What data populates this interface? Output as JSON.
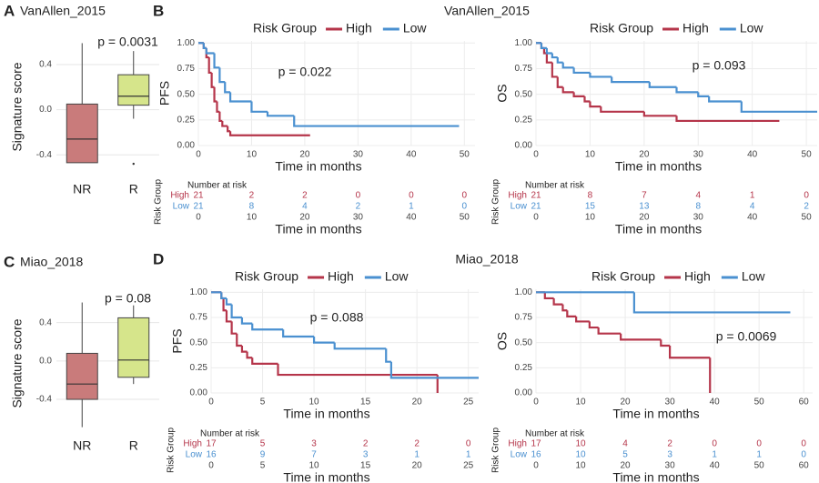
{
  "chart_data": [
    {
      "type": "box",
      "panel": "A",
      "title": "VanAllen_2015",
      "ylabel": "Signature score",
      "annotation": "p = 0.0031",
      "categories": [
        "NR",
        "R"
      ],
      "colors": [
        "#c97b7b",
        "#d6e58b"
      ],
      "grid": true,
      "boxes": [
        {
          "min": -0.47,
          "q1": -0.47,
          "median": -0.26,
          "q3": 0.05,
          "max": 0.59,
          "outliers": []
        },
        {
          "min": -0.08,
          "q1": 0.04,
          "median": 0.12,
          "q3": 0.31,
          "max": 0.52,
          "outliers": [
            -0.48
          ]
        }
      ],
      "ylim": [
        -0.6,
        0.65
      ],
      "yticks": [
        -0.4,
        {
          "value": 0,
          "label": "0.0"
        },
        0.4
      ]
    },
    {
      "type": "km",
      "panel": "B",
      "title": "VanAllen_2015",
      "legend_title": "Risk Group",
      "xlabel": "Time in months",
      "risk_title": "Number at risk",
      "grid": true,
      "plots": [
        {
          "ylabel": "PFS",
          "annotation": "p = 0.022",
          "xlim": [
            0,
            52
          ],
          "xticks": [
            0,
            10,
            20,
            30,
            40,
            50
          ],
          "ylim": [
            0,
            1.02
          ],
          "yticks": [
            {
              "value": 0,
              "label": "0.00"
            },
            {
              "value": 0.25,
              "label": "0.25"
            },
            {
              "value": 0.5,
              "label": "0.50"
            },
            {
              "value": 0.75,
              "label": "0.75"
            },
            {
              "value": 1,
              "label": "1.00"
            }
          ],
          "series": [
            {
              "name": "High",
              "color": "#b5354a",
              "x": [
                0,
                1,
                1.5,
                2,
                2.5,
                3,
                3.5,
                4,
                4.5,
                5.5,
                6,
                21
              ],
              "y": [
                1,
                0.95,
                0.86,
                0.71,
                0.57,
                0.43,
                0.33,
                0.24,
                0.19,
                0.14,
                0.1,
                0.1
              ],
              "at_risk": [
                21,
                2,
                2,
                0,
                0,
                0
              ]
            },
            {
              "name": "Low",
              "color": "#4a90d0",
              "x": [
                0,
                1,
                1.5,
                3,
                4,
                5,
                6,
                10,
                13,
                18,
                49
              ],
              "y": [
                1,
                0.95,
                0.9,
                0.76,
                0.62,
                0.52,
                0.43,
                0.33,
                0.29,
                0.19,
                0.19
              ],
              "at_risk": [
                21,
                8,
                4,
                2,
                1,
                0
              ]
            }
          ]
        },
        {
          "ylabel": "OS",
          "annotation": "p = 0.093",
          "xlim": [
            0,
            52
          ],
          "xticks": [
            0,
            10,
            20,
            30,
            40,
            50
          ],
          "ylim": [
            0,
            1.02
          ],
          "yticks": [
            {
              "value": 0,
              "label": "0.00"
            },
            {
              "value": 0.25,
              "label": "0.25"
            },
            {
              "value": 0.5,
              "label": "0.50"
            },
            {
              "value": 0.75,
              "label": "0.75"
            },
            {
              "value": 1,
              "label": "1.00"
            }
          ],
          "series": [
            {
              "name": "High",
              "color": "#b5354a",
              "x": [
                0,
                1,
                1.5,
                2,
                3,
                4,
                5,
                7,
                9,
                10,
                12,
                20,
                26,
                45
              ],
              "y": [
                1,
                0.95,
                0.9,
                0.81,
                0.67,
                0.57,
                0.52,
                0.48,
                0.43,
                0.38,
                0.33,
                0.29,
                0.24,
                0.24
              ],
              "at_risk": [
                21,
                8,
                7,
                4,
                1,
                0
              ]
            },
            {
              "name": "Low",
              "color": "#4a90d0",
              "x": [
                0,
                1,
                2,
                3,
                4,
                5,
                7,
                10,
                14,
                21,
                26,
                30,
                32,
                38,
                52
              ],
              "y": [
                1,
                0.95,
                0.9,
                0.86,
                0.81,
                0.76,
                0.71,
                0.67,
                0.62,
                0.57,
                0.52,
                0.48,
                0.43,
                0.33,
                0.33
              ],
              "at_risk": [
                21,
                15,
                13,
                8,
                4,
                2
              ]
            }
          ]
        }
      ]
    },
    {
      "type": "box",
      "panel": "C",
      "title": "Miao_2018",
      "ylabel": "Signature score",
      "annotation": "p = 0.08",
      "categories": [
        "NR",
        "R"
      ],
      "colors": [
        "#c97b7b",
        "#d6e58b"
      ],
      "grid": true,
      "boxes": [
        {
          "min": -0.69,
          "q1": -0.4,
          "median": -0.24,
          "q3": 0.08,
          "max": 0.61,
          "outliers": []
        },
        {
          "min": -0.24,
          "q1": -0.17,
          "median": 0.01,
          "q3": 0.45,
          "max": 0.58,
          "outliers": []
        }
      ],
      "ylim": [
        -0.76,
        0.71
      ],
      "yticks": [
        -0.4,
        {
          "value": 0,
          "label": "0.0"
        },
        0.4
      ]
    },
    {
      "type": "km",
      "panel": "D",
      "title": "Miao_2018",
      "legend_title": "Risk Group",
      "xlabel": "Time in months",
      "risk_title": "Number at risk",
      "grid": true,
      "plots": [
        {
          "ylabel": "PFS",
          "annotation": "p = 0.088",
          "xlim": [
            0,
            26
          ],
          "xticks": [
            0,
            5,
            10,
            15,
            20,
            25
          ],
          "ylim": [
            0,
            1.03
          ],
          "yticks": [
            {
              "value": 0,
              "label": "0.00"
            },
            {
              "value": 0.25,
              "label": "0.25"
            },
            {
              "value": 0.5,
              "label": "0.50"
            },
            {
              "value": 0.75,
              "label": "0.75"
            },
            {
              "value": 1,
              "label": "1.00"
            }
          ],
          "series": [
            {
              "name": "High",
              "color": "#b5354a",
              "x": [
                0,
                1,
                1.2,
                1.5,
                2,
                2.5,
                3,
                3.5,
                4,
                6.5,
                22
              ],
              "y": [
                1,
                0.94,
                0.82,
                0.71,
                0.59,
                0.47,
                0.41,
                0.35,
                0.29,
                0.18,
                0
              ],
              "at_risk": [
                17,
                5,
                3,
                2,
                2,
                0
              ]
            },
            {
              "name": "Low",
              "color": "#4a90d0",
              "x": [
                0,
                1,
                1.5,
                2,
                3,
                4,
                7,
                10,
                12,
                17,
                17.5,
                26
              ],
              "y": [
                1,
                0.94,
                0.88,
                0.75,
                0.69,
                0.63,
                0.56,
                0.5,
                0.44,
                0.31,
                0.15,
                0.15
              ],
              "at_risk": [
                16,
                9,
                7,
                3,
                1,
                1
              ]
            }
          ]
        },
        {
          "ylabel": "OS",
          "annotation": "p = 0.0069",
          "xlim": [
            0,
            62
          ],
          "xticks": [
            0,
            10,
            20,
            30,
            40,
            50,
            60
          ],
          "ylim": [
            0,
            1.03
          ],
          "yticks": [
            {
              "value": 0,
              "label": "0.00"
            },
            {
              "value": 0.25,
              "label": "0.25"
            },
            {
              "value": 0.5,
              "label": "0.50"
            },
            {
              "value": 0.75,
              "label": "0.75"
            },
            {
              "value": 1,
              "label": "1.00"
            }
          ],
          "series": [
            {
              "name": "High",
              "color": "#b5354a",
              "x": [
                0,
                2,
                4,
                6,
                7,
                9,
                12,
                14,
                19,
                28,
                30,
                39
              ],
              "y": [
                1,
                0.94,
                0.88,
                0.82,
                0.76,
                0.71,
                0.65,
                0.59,
                0.53,
                0.47,
                0.35,
                0
              ],
              "at_risk": [
                17,
                10,
                4,
                2,
                0,
                0,
                0
              ]
            },
            {
              "name": "Low",
              "color": "#4a90d0",
              "x": [
                0,
                22,
                57
              ],
              "y": [
                1,
                0.8,
                0.8
              ],
              "at_risk": [
                16,
                10,
                5,
                3,
                1,
                1,
                0
              ]
            }
          ]
        }
      ]
    }
  ]
}
